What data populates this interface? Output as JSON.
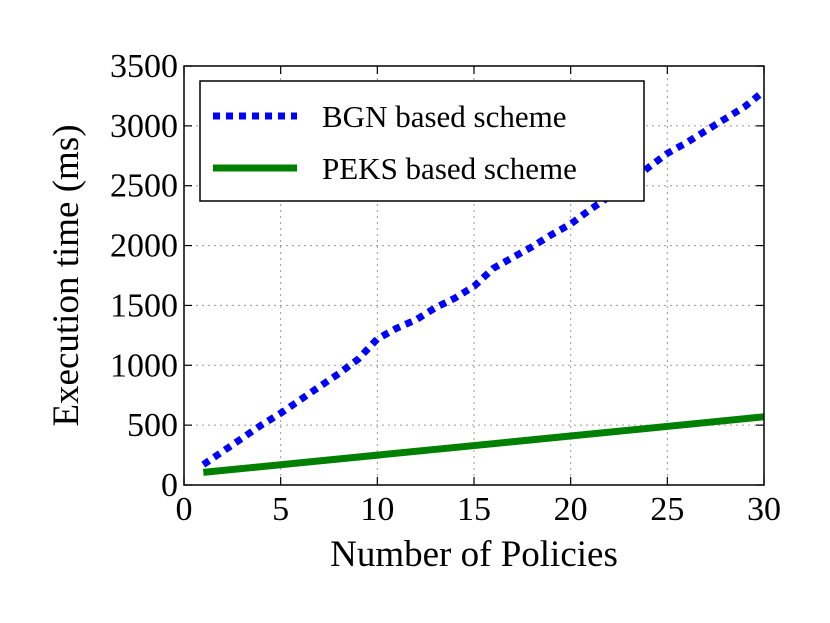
{
  "chart_data": {
    "type": "line",
    "xlabel": "Number of Policies",
    "ylabel": "Execution time (ms)",
    "xlim": [
      0,
      30
    ],
    "ylim": [
      0,
      3500
    ],
    "xticks": [
      "0",
      "5",
      "10",
      "15",
      "20",
      "25",
      "30"
    ],
    "yticks": [
      "0",
      "500",
      "1000",
      "1500",
      "2000",
      "2500",
      "3000",
      "3500"
    ],
    "grid": true,
    "legend_position": "top-left",
    "series": [
      {
        "name": "BGN based scheme",
        "color": "#0000ff",
        "style": "dotted",
        "x": [
          1,
          2,
          3,
          4,
          5,
          6,
          7,
          8,
          9,
          10,
          11,
          12,
          13,
          14,
          15,
          16,
          17,
          18,
          19,
          20,
          21,
          22,
          23,
          24,
          25,
          26,
          27,
          28,
          29,
          30
        ],
        "y": [
          170,
          280,
          390,
          500,
          600,
          710,
          820,
          930,
          1050,
          1220,
          1310,
          1380,
          1480,
          1560,
          1660,
          1810,
          1900,
          1990,
          2090,
          2180,
          2300,
          2410,
          2520,
          2650,
          2770,
          2860,
          2960,
          3060,
          3160,
          3290
        ]
      },
      {
        "name": "PEKS based scheme",
        "color": "#008000",
        "style": "solid",
        "x": [
          1,
          30
        ],
        "y": [
          105,
          570
        ]
      }
    ]
  }
}
